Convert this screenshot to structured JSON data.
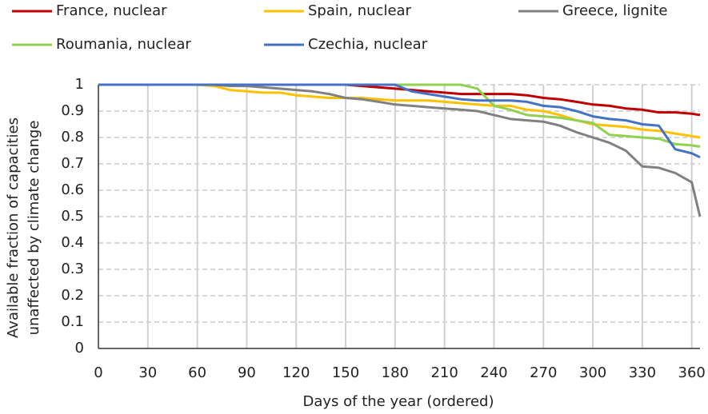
{
  "chart_data": {
    "type": "line",
    "y_label": [
      "Available fraction of capacities",
      "unaffected by climate change"
    ],
    "x_label": "Days of the year (ordered)",
    "x": [
      0,
      10,
      20,
      30,
      40,
      50,
      60,
      70,
      80,
      90,
      100,
      110,
      120,
      130,
      140,
      150,
      160,
      170,
      180,
      190,
      200,
      210,
      220,
      230,
      240,
      250,
      260,
      270,
      280,
      290,
      300,
      310,
      320,
      330,
      340,
      350,
      360,
      365
    ],
    "series": [
      {
        "name": "France, nuclear",
        "color": "#c00000",
        "values": [
          1,
          1,
          1,
          1,
          1,
          1,
          1,
          1,
          1,
          1,
          1,
          1,
          1,
          1,
          1,
          1,
          0.995,
          0.99,
          0.985,
          0.98,
          0.975,
          0.97,
          0.965,
          0.965,
          0.965,
          0.965,
          0.96,
          0.95,
          0.945,
          0.935,
          0.925,
          0.92,
          0.91,
          0.905,
          0.895,
          0.895,
          0.89,
          0.885
        ]
      },
      {
        "name": "Spain, nuclear",
        "color": "#ffc000",
        "values": [
          1,
          1,
          1,
          1,
          1,
          1,
          1,
          0.995,
          0.98,
          0.975,
          0.97,
          0.97,
          0.96,
          0.955,
          0.95,
          0.95,
          0.95,
          0.945,
          0.94,
          0.94,
          0.94,
          0.935,
          0.93,
          0.925,
          0.92,
          0.92,
          0.905,
          0.9,
          0.885,
          0.865,
          0.85,
          0.845,
          0.84,
          0.83,
          0.825,
          0.815,
          0.805,
          0.8
        ]
      },
      {
        "name": "Greece, lignite",
        "color": "#808080",
        "values": [
          1,
          1,
          1,
          1,
          1,
          1,
          1,
          1,
          0.995,
          0.995,
          0.99,
          0.985,
          0.98,
          0.975,
          0.965,
          0.95,
          0.945,
          0.935,
          0.925,
          0.92,
          0.915,
          0.91,
          0.905,
          0.9,
          0.885,
          0.87,
          0.865,
          0.86,
          0.845,
          0.82,
          0.8,
          0.78,
          0.75,
          0.69,
          0.685,
          0.665,
          0.63,
          0.5
        ]
      },
      {
        "name": "Roumania, nuclear",
        "color": "#92d050",
        "values": [
          1,
          1,
          1,
          1,
          1,
          1,
          1,
          1,
          1,
          1,
          1,
          1,
          1,
          1,
          1,
          1,
          1,
          1,
          1,
          1,
          1,
          1,
          1,
          0.985,
          0.92,
          0.905,
          0.885,
          0.88,
          0.875,
          0.865,
          0.855,
          0.81,
          0.805,
          0.8,
          0.795,
          0.775,
          0.77,
          0.765
        ]
      },
      {
        "name": "Czechia, nuclear",
        "color": "#4472c4",
        "values": [
          1,
          1,
          1,
          1,
          1,
          1,
          1,
          1,
          1,
          1,
          1,
          1,
          1,
          1,
          1,
          1,
          1,
          1,
          1,
          0.975,
          0.965,
          0.955,
          0.945,
          0.94,
          0.94,
          0.94,
          0.935,
          0.92,
          0.915,
          0.9,
          0.88,
          0.87,
          0.865,
          0.85,
          0.845,
          0.755,
          0.74,
          0.725
        ]
      }
    ],
    "xlim": [
      0,
      365
    ],
    "xticks": [
      0,
      30,
      60,
      90,
      120,
      150,
      180,
      210,
      240,
      270,
      300,
      330,
      360
    ],
    "ylim": [
      0,
      1
    ],
    "yticks": [
      0,
      0.1,
      0.2,
      0.3,
      0.4,
      0.5,
      0.6,
      0.7,
      0.8,
      0.9,
      1
    ],
    "grid": true
  }
}
